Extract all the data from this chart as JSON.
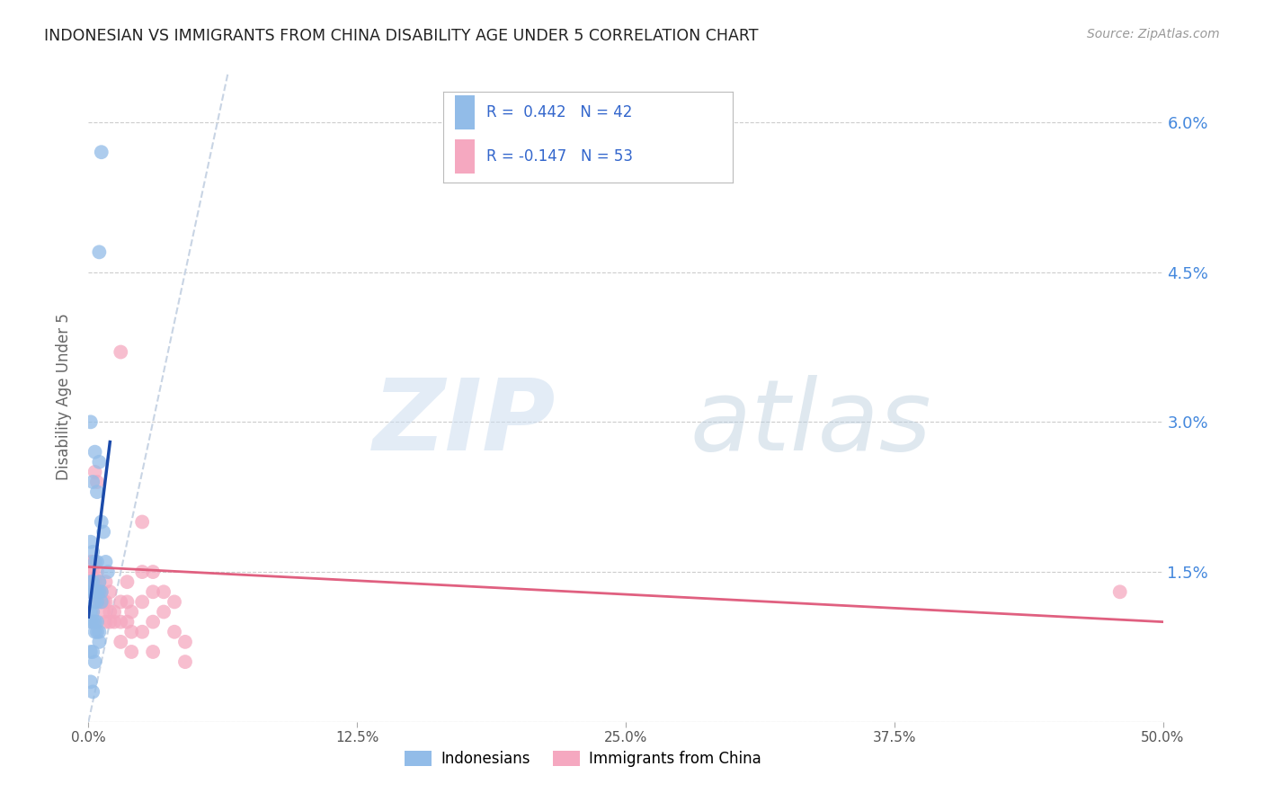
{
  "title": "INDONESIAN VS IMMIGRANTS FROM CHINA DISABILITY AGE UNDER 5 CORRELATION CHART",
  "source": "Source: ZipAtlas.com",
  "ylabel": "Disability Age Under 5",
  "xlim": [
    0.0,
    0.5
  ],
  "ylim": [
    0.0,
    0.065
  ],
  "yticks": [
    0.0,
    0.015,
    0.03,
    0.045,
    0.06
  ],
  "ytick_labels_right": [
    "",
    "1.5%",
    "3.0%",
    "4.5%",
    "6.0%"
  ],
  "xtick_positions": [
    0.0,
    0.125,
    0.25,
    0.375,
    0.5
  ],
  "xtick_labels": [
    "0.0%",
    "12.5%",
    "25.0%",
    "37.5%",
    "50.0%"
  ],
  "indonesian_color": "#92bce8",
  "china_color": "#f5a8c0",
  "trendline_indonesian_color": "#1a4aaa",
  "trendline_china_color": "#e06080",
  "diagonal_color": "#c8d4e4",
  "right_axis_color": "#4488dd",
  "indonesian_points": [
    [
      0.006,
      0.057
    ],
    [
      0.005,
      0.047
    ],
    [
      0.001,
      0.03
    ],
    [
      0.003,
      0.027
    ],
    [
      0.002,
      0.024
    ],
    [
      0.005,
      0.026
    ],
    [
      0.004,
      0.023
    ],
    [
      0.006,
      0.02
    ],
    [
      0.007,
      0.019
    ],
    [
      0.001,
      0.018
    ],
    [
      0.002,
      0.017
    ],
    [
      0.003,
      0.016
    ],
    [
      0.004,
      0.016
    ],
    [
      0.008,
      0.016
    ],
    [
      0.009,
      0.015
    ],
    [
      0.001,
      0.014
    ],
    [
      0.001,
      0.013
    ],
    [
      0.002,
      0.014
    ],
    [
      0.002,
      0.013
    ],
    [
      0.003,
      0.013
    ],
    [
      0.003,
      0.012
    ],
    [
      0.004,
      0.013
    ],
    [
      0.004,
      0.012
    ],
    [
      0.005,
      0.014
    ],
    [
      0.005,
      0.013
    ],
    [
      0.006,
      0.013
    ],
    [
      0.006,
      0.012
    ],
    [
      0.001,
      0.011
    ],
    [
      0.001,
      0.01
    ],
    [
      0.002,
      0.011
    ],
    [
      0.002,
      0.01
    ],
    [
      0.003,
      0.01
    ],
    [
      0.003,
      0.009
    ],
    [
      0.004,
      0.01
    ],
    [
      0.004,
      0.009
    ],
    [
      0.005,
      0.009
    ],
    [
      0.005,
      0.008
    ],
    [
      0.001,
      0.007
    ],
    [
      0.002,
      0.007
    ],
    [
      0.003,
      0.006
    ],
    [
      0.001,
      0.004
    ],
    [
      0.002,
      0.003
    ]
  ],
  "china_points": [
    [
      0.001,
      0.016
    ],
    [
      0.001,
      0.015
    ],
    [
      0.001,
      0.014
    ],
    [
      0.001,
      0.013
    ],
    [
      0.002,
      0.016
    ],
    [
      0.002,
      0.015
    ],
    [
      0.002,
      0.014
    ],
    [
      0.002,
      0.013
    ],
    [
      0.003,
      0.025
    ],
    [
      0.003,
      0.016
    ],
    [
      0.003,
      0.014
    ],
    [
      0.004,
      0.024
    ],
    [
      0.004,
      0.015
    ],
    [
      0.004,
      0.013
    ],
    [
      0.005,
      0.014
    ],
    [
      0.005,
      0.013
    ],
    [
      0.005,
      0.012
    ],
    [
      0.006,
      0.013
    ],
    [
      0.006,
      0.012
    ],
    [
      0.007,
      0.012
    ],
    [
      0.007,
      0.011
    ],
    [
      0.008,
      0.014
    ],
    [
      0.008,
      0.012
    ],
    [
      0.008,
      0.01
    ],
    [
      0.01,
      0.013
    ],
    [
      0.01,
      0.011
    ],
    [
      0.01,
      0.01
    ],
    [
      0.012,
      0.011
    ],
    [
      0.012,
      0.01
    ],
    [
      0.015,
      0.037
    ],
    [
      0.015,
      0.012
    ],
    [
      0.015,
      0.01
    ],
    [
      0.015,
      0.008
    ],
    [
      0.018,
      0.014
    ],
    [
      0.018,
      0.012
    ],
    [
      0.018,
      0.01
    ],
    [
      0.02,
      0.011
    ],
    [
      0.02,
      0.009
    ],
    [
      0.02,
      0.007
    ],
    [
      0.025,
      0.02
    ],
    [
      0.025,
      0.015
    ],
    [
      0.025,
      0.012
    ],
    [
      0.025,
      0.009
    ],
    [
      0.03,
      0.015
    ],
    [
      0.03,
      0.013
    ],
    [
      0.03,
      0.01
    ],
    [
      0.03,
      0.007
    ],
    [
      0.035,
      0.013
    ],
    [
      0.035,
      0.011
    ],
    [
      0.04,
      0.012
    ],
    [
      0.04,
      0.009
    ],
    [
      0.045,
      0.008
    ],
    [
      0.045,
      0.006
    ],
    [
      0.48,
      0.013
    ]
  ],
  "indonesian_trendline": [
    [
      0.0,
      0.0105
    ],
    [
      0.01,
      0.028
    ]
  ],
  "china_trendline": [
    [
      0.0,
      0.0155
    ],
    [
      0.5,
      0.01
    ]
  ],
  "diagonal_line": [
    [
      0.0,
      0.0
    ],
    [
      0.065,
      0.065
    ]
  ]
}
